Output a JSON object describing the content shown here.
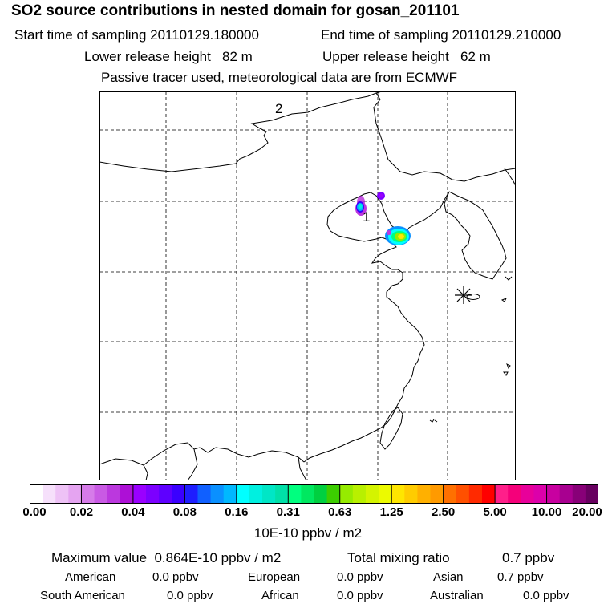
{
  "header": {
    "title": "SO2 source contributions in nested domain for gosan_201101",
    "start_time": "Start time of sampling 20110129.180000",
    "end_time": "End time of sampling 20110129.210000",
    "lower_height": "Lower release height   82 m",
    "upper_height": "Upper release height   62 m",
    "tracer_note": "Passive tracer used, meteorological data are from ECMWF"
  },
  "map": {
    "labels": {
      "label_1": "1",
      "label_2": "2"
    },
    "receptor_marker": "asterisk-marker"
  },
  "colorbar": {
    "ticks": [
      "0.00",
      "0.02",
      "0.04",
      "0.08",
      "0.16",
      "0.31",
      "0.63",
      "1.25",
      "2.50",
      "5.00",
      "10.00",
      "20.00"
    ],
    "colors": [
      "#ffffff",
      "#f6e0fb",
      "#eec2f6",
      "#e5a4f1",
      "#d67be9",
      "#c95ae4",
      "#bb38de",
      "#ad10d6",
      "#9a00ff",
      "#7c00ff",
      "#5e00ff",
      "#3a00ff",
      "#1e1eff",
      "#1060ff",
      "#0a90ff",
      "#00b8ff",
      "#00ffff",
      "#00f0e0",
      "#00e6c6",
      "#00e0a8",
      "#00ff7f",
      "#00e860",
      "#00d040",
      "#3ccd00",
      "#96eb00",
      "#b8f000",
      "#d4f400",
      "#ecfa00",
      "#ffe600",
      "#ffcc00",
      "#ffb000",
      "#ff9a00",
      "#ff7000",
      "#ff5000",
      "#ff2a00",
      "#ff0000",
      "#ff1f8a",
      "#f5007a",
      "#e8009a",
      "#dc00aa",
      "#c800a0",
      "#a80090",
      "#880078",
      "#680060"
    ],
    "unit": "10E-10 ppbv / m2"
  },
  "stats": {
    "maximum": "Maximum value  0.864E-10 ppbv / m2",
    "total_label": "Total mixing ratio",
    "total_value": "0.7 ppbv",
    "regions": [
      {
        "name": "American",
        "value": "0.0 ppbv"
      },
      {
        "name": "European",
        "value": "0.0 ppbv"
      },
      {
        "name": "Asian",
        "value": "0.7 ppbv"
      },
      {
        "name": "South American",
        "value": "0.0 ppbv"
      },
      {
        "name": "African",
        "value": "0.0 ppbv"
      },
      {
        "name": "Australian",
        "value": "0.0 ppbv"
      }
    ]
  }
}
